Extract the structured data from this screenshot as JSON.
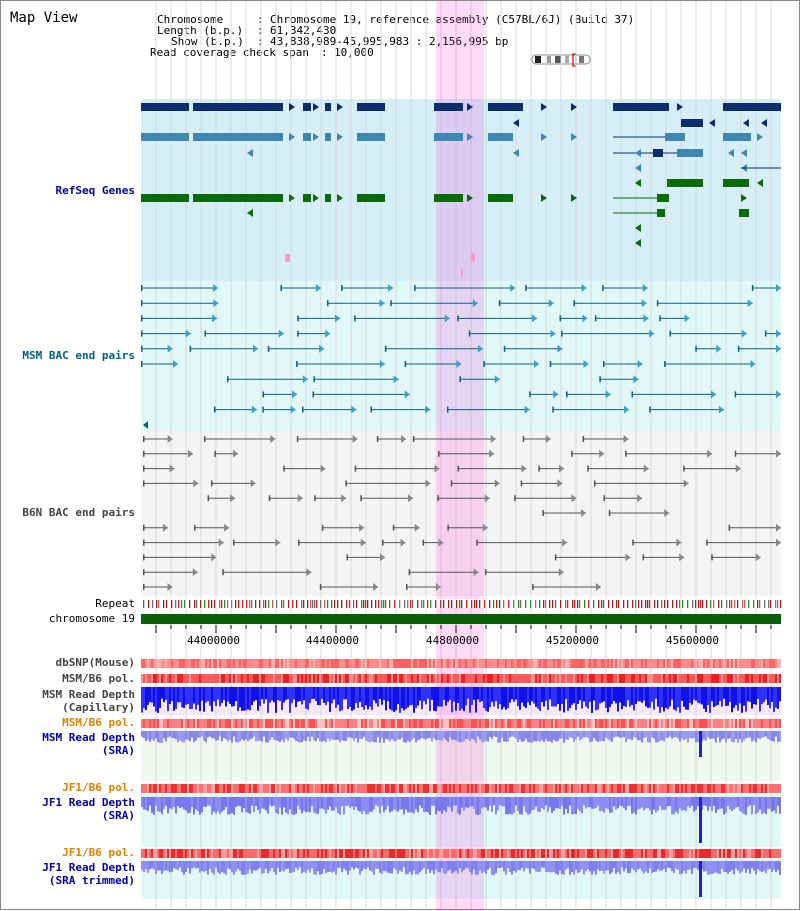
{
  "title": "Map View",
  "header": {
    "chromosome_key": "Chromosome",
    "chromosome_val": "Chromosome 19, reference assembly (C57BL/6J) (Build 37)",
    "length_key": "Length (b.p.)",
    "length_val": "61,342,430",
    "show_key": "Show (b.p.)",
    "show_val": "43,838,989-45,995,983 : 2,156,995 bp",
    "coverage_key": "Read coverage check span",
    "coverage_val": "10,000"
  },
  "tracks": {
    "refseq": "RefSeq Genes",
    "msm_bac": "MSM BAC end pairs",
    "b6n_bac": "B6N BAC end pairs",
    "repeat": "Repeat",
    "chrom": "chromosome 19",
    "dbsnp": "dbSNP(Mouse)",
    "msm_pol_1": "MSM/B6 pol.",
    "msm_depth_cap_1": "MSM Read Depth",
    "msm_depth_cap_2": "(Capillary)",
    "msm_pol_2": "MSM/B6 pol.",
    "msm_depth_sra_1": "MSM Read Depth",
    "msm_depth_sra_2": "(SRA)",
    "jf1_pol_1": "JF1/B6 pol.",
    "jf1_depth_sra_1": "JF1 Read Depth",
    "jf1_depth_sra_2": "(SRA)",
    "jf1_pol_2": "JF1/B6 pol.",
    "jf1_depth_trim_1": "JF1 Read Depth",
    "jf1_depth_trim_2": "(SRA trimmed)"
  },
  "ruler": {
    "ticks": [
      "44000000",
      "44400000",
      "44800000",
      "45200000",
      "45600000"
    ]
  },
  "colors": {
    "refseq_dark": "#0b2d6b",
    "refseq_mid": "#3f87b3",
    "refseq_green": "#0a6b0a",
    "refseq_bg": "#d6eef8",
    "msm_bac": "#0f5f7f",
    "msm_bg": "#e0f8f8",
    "b6n_bac": "#555555",
    "b6n_bg": "#f4f4f4",
    "highlight": "#ff00cc",
    "chrom_bar": "#0a5e0a",
    "depth_blue": "#1010e8",
    "depth_light_blue": "#8080ee",
    "label_blue": "#0000aa",
    "label_teal": "#006080",
    "label_orange": "#e08000"
  }
}
